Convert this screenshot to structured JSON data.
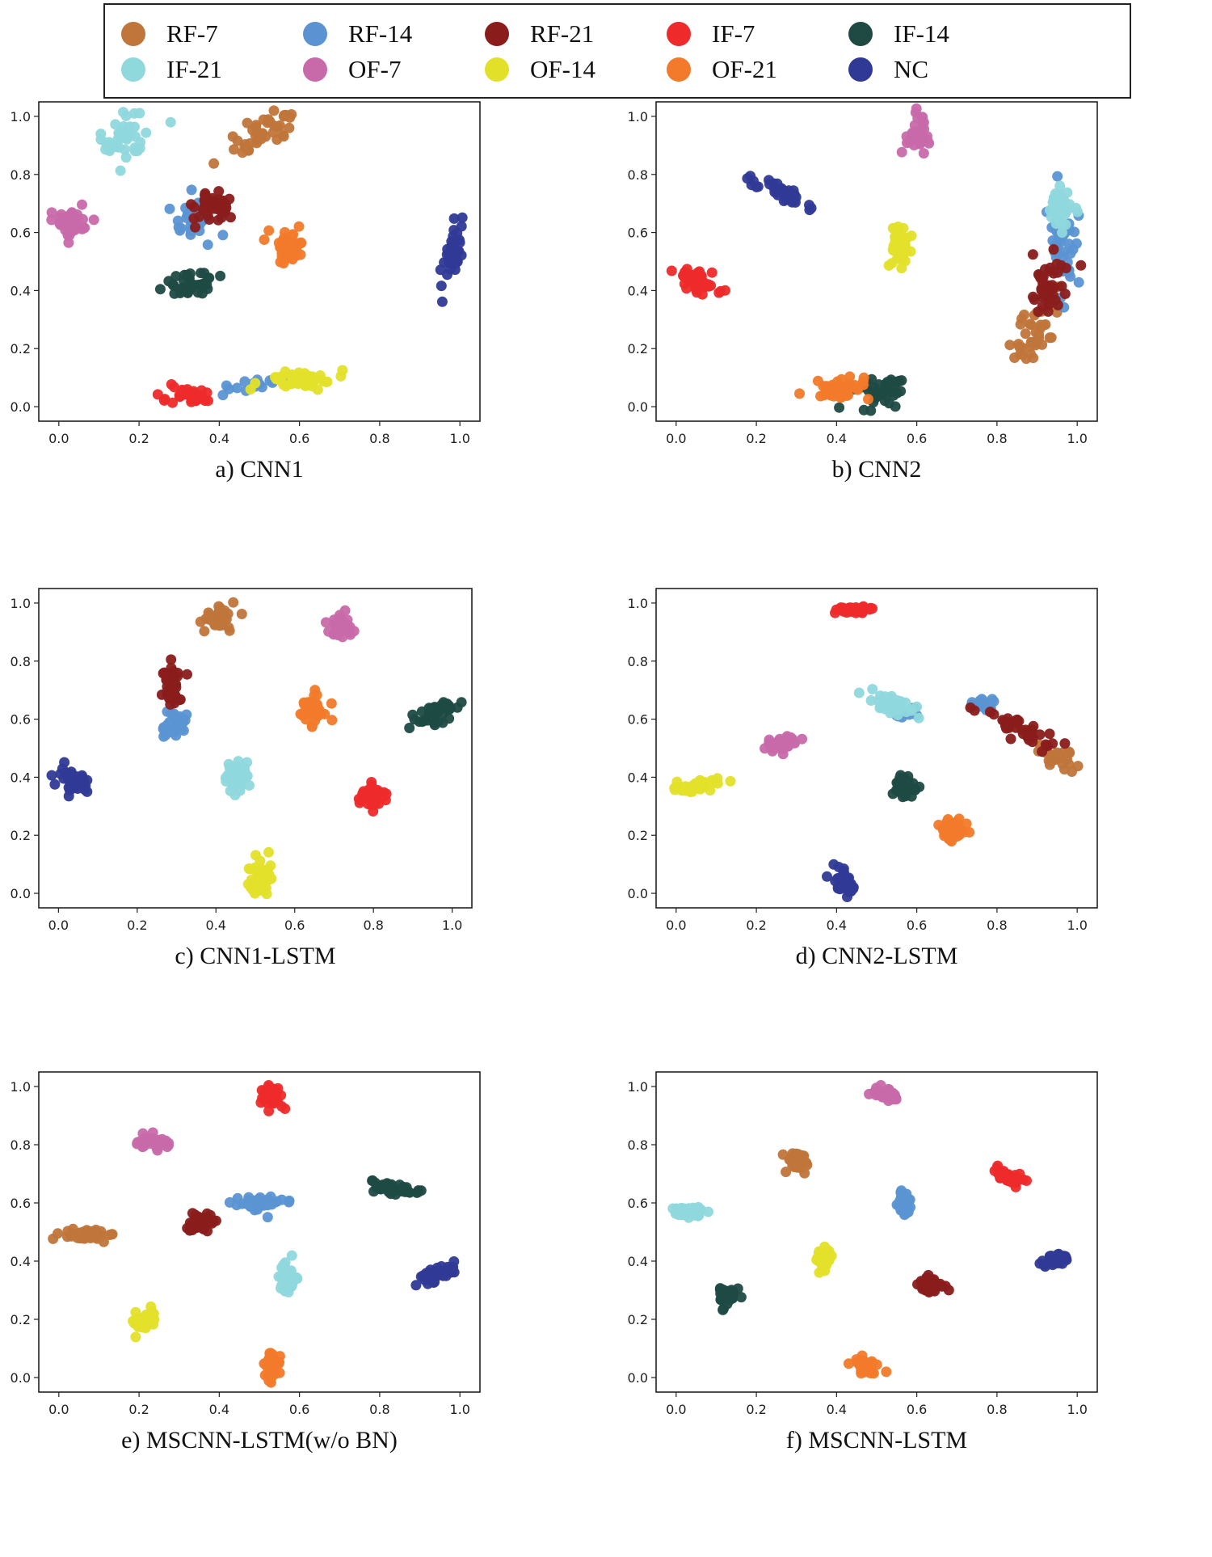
{
  "legend": [
    {
      "name": "RF-7",
      "color": "#c0753a"
    },
    {
      "name": "RF-14",
      "color": "#5b93d2"
    },
    {
      "name": "RF-21",
      "color": "#8a1c1c"
    },
    {
      "name": "IF-7",
      "color": "#ee2a2a"
    },
    {
      "name": "IF-14",
      "color": "#1f4a44"
    },
    {
      "name": "IF-21",
      "color": "#8fd8dc"
    },
    {
      "name": "OF-7",
      "color": "#c86aaa"
    },
    {
      "name": "OF-14",
      "color": "#e3e02a"
    },
    {
      "name": "OF-21",
      "color": "#f27a2a"
    },
    {
      "name": "NC",
      "color": "#303a96"
    }
  ],
  "chart_data": [
    {
      "type": "scatter",
      "caption": "a) CNN1",
      "xlim": [
        -0.05,
        1.05
      ],
      "ylim": [
        -0.05,
        1.05
      ],
      "xticks": [
        "0.0",
        "0.2",
        "0.4",
        "0.6",
        "0.8",
        "1.0"
      ],
      "yticks": [
        "0.0",
        "0.2",
        "0.4",
        "0.6",
        "0.8",
        "1.0"
      ],
      "clusters": [
        {
          "class": "RF-7",
          "x": 0.51,
          "y": 0.94,
          "sx": 0.04,
          "sy": 0.03,
          "n": 40,
          "tilt": 0.6
        },
        {
          "class": "RF-14",
          "x": 0.33,
          "y": 0.65,
          "sx": 0.03,
          "sy": 0.05,
          "n": 24,
          "tilt": 0
        },
        {
          "class": "RF-14",
          "x": 0.49,
          "y": 0.08,
          "sx": 0.05,
          "sy": 0.012,
          "n": 16,
          "tilt": 0.2
        },
        {
          "class": "RF-21",
          "x": 0.37,
          "y": 0.69,
          "sx": 0.03,
          "sy": 0.03,
          "n": 38,
          "tilt": 0
        },
        {
          "class": "IF-7",
          "x": 0.32,
          "y": 0.035,
          "sx": 0.04,
          "sy": 0.015,
          "n": 40,
          "tilt": 0
        },
        {
          "class": "IF-14",
          "x": 0.33,
          "y": 0.42,
          "sx": 0.04,
          "sy": 0.02,
          "n": 40,
          "tilt": 0.2
        },
        {
          "class": "IF-21",
          "x": 0.17,
          "y": 0.92,
          "sx": 0.03,
          "sy": 0.04,
          "n": 40,
          "tilt": 0.8
        },
        {
          "class": "OF-7",
          "x": 0.03,
          "y": 0.64,
          "sx": 0.02,
          "sy": 0.03,
          "n": 40,
          "tilt": 0
        },
        {
          "class": "OF-14",
          "x": 0.59,
          "y": 0.09,
          "sx": 0.05,
          "sy": 0.015,
          "n": 40,
          "tilt": 0.15
        },
        {
          "class": "OF-21",
          "x": 0.58,
          "y": 0.55,
          "sx": 0.025,
          "sy": 0.03,
          "n": 40,
          "tilt": 0
        },
        {
          "class": "NC",
          "x": 0.98,
          "y": 0.53,
          "sx": 0.012,
          "sy": 0.04,
          "n": 40,
          "tilt": 2.0
        }
      ]
    },
    {
      "type": "scatter",
      "caption": "b) CNN2",
      "xlim": [
        -0.05,
        1.05
      ],
      "ylim": [
        -0.05,
        1.05
      ],
      "xticks": [
        "0.0",
        "0.2",
        "0.4",
        "0.6",
        "0.8",
        "1.0"
      ],
      "yticks": [
        "0.0",
        "0.2",
        "0.4",
        "0.6",
        "0.8",
        "1.0"
      ],
      "clusters": [
        {
          "class": "RF-7",
          "x": 0.89,
          "y": 0.27,
          "sx": 0.025,
          "sy": 0.05,
          "n": 40,
          "tilt": 1.2
        },
        {
          "class": "RF-14",
          "x": 0.97,
          "y": 0.58,
          "sx": 0.02,
          "sy": 0.08,
          "n": 40,
          "tilt": 0
        },
        {
          "class": "RF-21",
          "x": 0.93,
          "y": 0.42,
          "sx": 0.02,
          "sy": 0.06,
          "n": 40,
          "tilt": 1.2
        },
        {
          "class": "IF-7",
          "x": 0.05,
          "y": 0.43,
          "sx": 0.035,
          "sy": 0.02,
          "n": 40,
          "tilt": -0.5
        },
        {
          "class": "IF-14",
          "x": 0.51,
          "y": 0.05,
          "sx": 0.035,
          "sy": 0.03,
          "n": 40,
          "tilt": 0.4
        },
        {
          "class": "IF-21",
          "x": 0.96,
          "y": 0.68,
          "sx": 0.015,
          "sy": 0.04,
          "n": 40,
          "tilt": 0
        },
        {
          "class": "OF-7",
          "x": 0.6,
          "y": 0.93,
          "sx": 0.015,
          "sy": 0.035,
          "n": 40,
          "tilt": 0
        },
        {
          "class": "OF-14",
          "x": 0.56,
          "y": 0.55,
          "sx": 0.012,
          "sy": 0.04,
          "n": 40,
          "tilt": 0
        },
        {
          "class": "OF-21",
          "x": 0.41,
          "y": 0.065,
          "sx": 0.04,
          "sy": 0.02,
          "n": 40,
          "tilt": 0
        },
        {
          "class": "NC",
          "x": 0.26,
          "y": 0.74,
          "sx": 0.035,
          "sy": 0.015,
          "n": 40,
          "tilt": -0.7
        }
      ]
    },
    {
      "type": "scatter",
      "caption": "c) CNN1-LSTM",
      "xlim": [
        -0.05,
        1.05
      ],
      "ylim": [
        -0.05,
        1.05
      ],
      "xticks": [
        "0.0",
        "0.2",
        "0.4",
        "0.6",
        "0.8",
        "1.0"
      ],
      "yticks": [
        "0.0",
        "0.2",
        "0.4",
        "0.6",
        "0.8",
        "1.0"
      ],
      "clusters": [
        {
          "class": "RF-7",
          "x": 0.41,
          "y": 0.95,
          "sx": 0.02,
          "sy": 0.025,
          "n": 40,
          "tilt": 0
        },
        {
          "class": "RF-14",
          "x": 0.29,
          "y": 0.58,
          "sx": 0.02,
          "sy": 0.02,
          "n": 40,
          "tilt": 0
        },
        {
          "class": "RF-21",
          "x": 0.29,
          "y": 0.72,
          "sx": 0.012,
          "sy": 0.045,
          "n": 40,
          "tilt": 0
        },
        {
          "class": "IF-7",
          "x": 0.8,
          "y": 0.33,
          "sx": 0.015,
          "sy": 0.02,
          "n": 40,
          "tilt": 0
        },
        {
          "class": "IF-14",
          "x": 0.96,
          "y": 0.615,
          "sx": 0.03,
          "sy": 0.015,
          "n": 40,
          "tilt": 0.3
        },
        {
          "class": "IF-21",
          "x": 0.45,
          "y": 0.4,
          "sx": 0.015,
          "sy": 0.025,
          "n": 40,
          "tilt": 0
        },
        {
          "class": "OF-7",
          "x": 0.72,
          "y": 0.92,
          "sx": 0.02,
          "sy": 0.02,
          "n": 40,
          "tilt": 0
        },
        {
          "class": "OF-14",
          "x": 0.51,
          "y": 0.05,
          "sx": 0.015,
          "sy": 0.035,
          "n": 40,
          "tilt": 0
        },
        {
          "class": "OF-21",
          "x": 0.64,
          "y": 0.63,
          "sx": 0.02,
          "sy": 0.025,
          "n": 40,
          "tilt": 0
        },
        {
          "class": "NC",
          "x": 0.04,
          "y": 0.39,
          "sx": 0.02,
          "sy": 0.02,
          "n": 40,
          "tilt": -0.5
        }
      ]
    },
    {
      "type": "scatter",
      "caption": "d) CNN2-LSTM",
      "xlim": [
        -0.05,
        1.05
      ],
      "ylim": [
        -0.05,
        1.05
      ],
      "xticks": [
        "0.0",
        "0.2",
        "0.4",
        "0.6",
        "0.8",
        "1.0"
      ],
      "yticks": [
        "0.0",
        "0.2",
        "0.4",
        "0.6",
        "0.8",
        "1.0"
      ],
      "clusters": [
        {
          "class": "RF-7",
          "x": 0.94,
          "y": 0.47,
          "sx": 0.03,
          "sy": 0.015,
          "n": 30,
          "tilt": -0.5
        },
        {
          "class": "RF-14",
          "x": 0.77,
          "y": 0.65,
          "sx": 0.02,
          "sy": 0.012,
          "n": 20,
          "tilt": 0
        },
        {
          "class": "RF-14",
          "x": 0.57,
          "y": 0.62,
          "sx": 0.02,
          "sy": 0.01,
          "n": 10,
          "tilt": 0
        },
        {
          "class": "RF-21",
          "x": 0.86,
          "y": 0.57,
          "sx": 0.05,
          "sy": 0.02,
          "n": 40,
          "tilt": -0.55
        },
        {
          "class": "IF-7",
          "x": 0.44,
          "y": 0.975,
          "sx": 0.025,
          "sy": 0.01,
          "n": 40,
          "tilt": 0
        },
        {
          "class": "IF-14",
          "x": 0.57,
          "y": 0.37,
          "sx": 0.015,
          "sy": 0.02,
          "n": 40,
          "tilt": 0
        },
        {
          "class": "IF-21",
          "x": 0.54,
          "y": 0.65,
          "sx": 0.03,
          "sy": 0.015,
          "n": 40,
          "tilt": -0.3
        },
        {
          "class": "OF-7",
          "x": 0.27,
          "y": 0.51,
          "sx": 0.02,
          "sy": 0.015,
          "n": 40,
          "tilt": 0
        },
        {
          "class": "OF-14",
          "x": 0.05,
          "y": 0.37,
          "sx": 0.03,
          "sy": 0.012,
          "n": 40,
          "tilt": 0.3
        },
        {
          "class": "OF-21",
          "x": 0.69,
          "y": 0.22,
          "sx": 0.015,
          "sy": 0.025,
          "n": 40,
          "tilt": 0
        },
        {
          "class": "NC",
          "x": 0.42,
          "y": 0.04,
          "sx": 0.015,
          "sy": 0.02,
          "n": 40,
          "tilt": -0.8
        }
      ]
    },
    {
      "type": "scatter",
      "caption": "e) MSCNN-LSTM(w/o BN)",
      "xlim": [
        -0.05,
        1.05
      ],
      "ylim": [
        -0.05,
        1.05
      ],
      "xticks": [
        "0.0",
        "0.2",
        "0.4",
        "0.6",
        "0.8",
        "1.0"
      ],
      "yticks": [
        "0.0",
        "0.2",
        "0.4",
        "0.6",
        "0.8",
        "1.0"
      ],
      "clusters": [
        {
          "class": "RF-7",
          "x": 0.06,
          "y": 0.49,
          "sx": 0.035,
          "sy": 0.01,
          "n": 40,
          "tilt": 0
        },
        {
          "class": "RF-14",
          "x": 0.5,
          "y": 0.6,
          "sx": 0.03,
          "sy": 0.012,
          "n": 40,
          "tilt": 0
        },
        {
          "class": "RF-21",
          "x": 0.35,
          "y": 0.53,
          "sx": 0.02,
          "sy": 0.015,
          "n": 40,
          "tilt": 0.3
        },
        {
          "class": "IF-7",
          "x": 0.53,
          "y": 0.965,
          "sx": 0.015,
          "sy": 0.02,
          "n": 40,
          "tilt": -0.5
        },
        {
          "class": "IF-14",
          "x": 0.84,
          "y": 0.65,
          "sx": 0.03,
          "sy": 0.01,
          "n": 40,
          "tilt": -0.2
        },
        {
          "class": "IF-21",
          "x": 0.57,
          "y": 0.34,
          "sx": 0.01,
          "sy": 0.025,
          "n": 40,
          "tilt": 0
        },
        {
          "class": "OF-7",
          "x": 0.23,
          "y": 0.81,
          "sx": 0.02,
          "sy": 0.01,
          "n": 40,
          "tilt": 0
        },
        {
          "class": "OF-14",
          "x": 0.21,
          "y": 0.2,
          "sx": 0.015,
          "sy": 0.015,
          "n": 40,
          "tilt": 0.5
        },
        {
          "class": "OF-21",
          "x": 0.53,
          "y": 0.04,
          "sx": 0.01,
          "sy": 0.025,
          "n": 40,
          "tilt": 0
        },
        {
          "class": "NC",
          "x": 0.95,
          "y": 0.355,
          "sx": 0.025,
          "sy": 0.012,
          "n": 40,
          "tilt": 0.4
        }
      ]
    },
    {
      "type": "scatter",
      "caption": "f) MSCNN-LSTM",
      "xlim": [
        -0.05,
        1.05
      ],
      "ylim": [
        -0.05,
        1.05
      ],
      "xticks": [
        "0.0",
        "0.2",
        "0.4",
        "0.6",
        "0.8",
        "1.0"
      ],
      "yticks": [
        "0.0",
        "0.2",
        "0.4",
        "0.6",
        "0.8",
        "1.0"
      ],
      "clusters": [
        {
          "class": "RF-7",
          "x": 0.3,
          "y": 0.75,
          "sx": 0.012,
          "sy": 0.02,
          "n": 40,
          "tilt": -0.5
        },
        {
          "class": "RF-14",
          "x": 0.57,
          "y": 0.6,
          "sx": 0.01,
          "sy": 0.02,
          "n": 40,
          "tilt": 0
        },
        {
          "class": "RF-21",
          "x": 0.63,
          "y": 0.32,
          "sx": 0.015,
          "sy": 0.012,
          "n": 40,
          "tilt": 0
        },
        {
          "class": "IF-7",
          "x": 0.83,
          "y": 0.69,
          "sx": 0.02,
          "sy": 0.01,
          "n": 40,
          "tilt": -0.5
        },
        {
          "class": "IF-14",
          "x": 0.13,
          "y": 0.285,
          "sx": 0.01,
          "sy": 0.018,
          "n": 40,
          "tilt": 0
        },
        {
          "class": "IF-21",
          "x": 0.03,
          "y": 0.57,
          "sx": 0.02,
          "sy": 0.01,
          "n": 40,
          "tilt": 0
        },
        {
          "class": "OF-7",
          "x": 0.53,
          "y": 0.97,
          "sx": 0.015,
          "sy": 0.01,
          "n": 40,
          "tilt": -0.3
        },
        {
          "class": "OF-14",
          "x": 0.37,
          "y": 0.4,
          "sx": 0.01,
          "sy": 0.018,
          "n": 40,
          "tilt": 0
        },
        {
          "class": "OF-21",
          "x": 0.47,
          "y": 0.04,
          "sx": 0.015,
          "sy": 0.015,
          "n": 40,
          "tilt": -0.8
        },
        {
          "class": "NC",
          "x": 0.95,
          "y": 0.405,
          "sx": 0.02,
          "sy": 0.01,
          "n": 40,
          "tilt": 0.3
        }
      ]
    }
  ]
}
